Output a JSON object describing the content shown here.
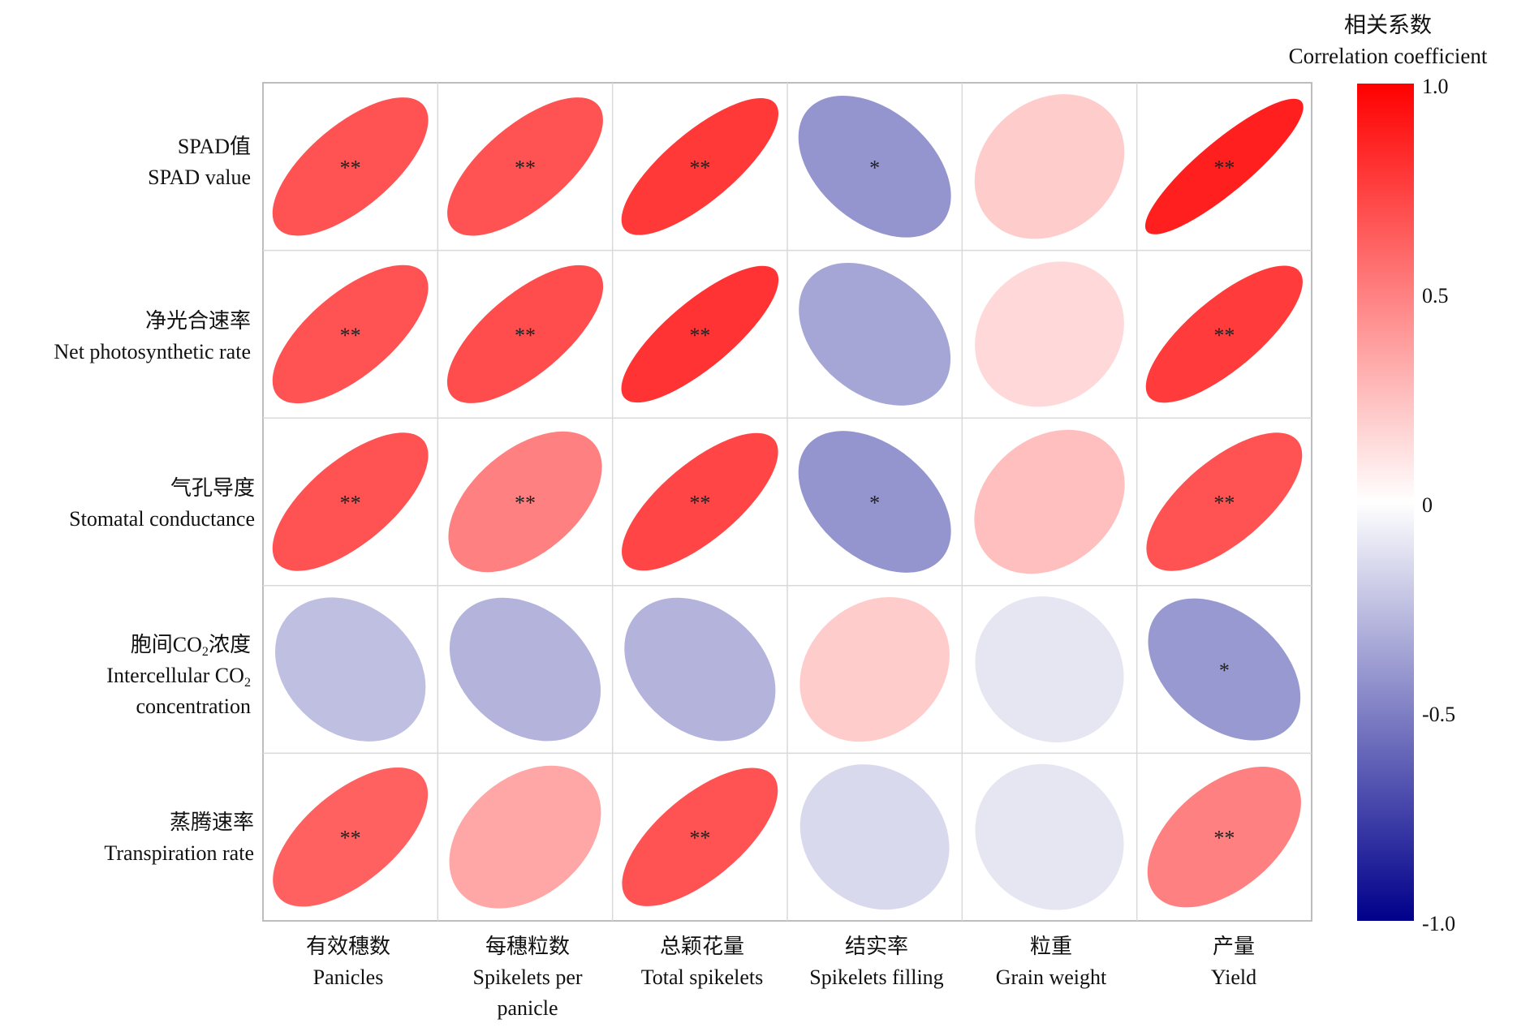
{
  "chart_data": {
    "type": "heatmap",
    "style": "ellipse correlation matrix",
    "rows": [
      {
        "zh": "SPAD值",
        "en": "SPAD value"
      },
      {
        "zh": "净光合速率",
        "en": "Net photosynthetic rate"
      },
      {
        "zh": "气孔导度",
        "en": "Stomatal conductance"
      },
      {
        "zh_pre": "胞间CO",
        "zh_sub": "2",
        "zh_post": "浓度",
        "en_pre": "Intercellular CO",
        "en_sub": "2",
        "en_line2": "concentration"
      },
      {
        "zh": "蒸腾速率",
        "en": "Transpiration rate"
      }
    ],
    "columns": [
      {
        "zh": "有效穗数",
        "en": "Panicles"
      },
      {
        "zh": "每穗粒数",
        "en": "Spikelets per",
        "en2": "panicle"
      },
      {
        "zh": "总颖花量",
        "en": "Total spikelets"
      },
      {
        "zh": "结实率",
        "en": "Spikelets filling"
      },
      {
        "zh": "粒重",
        "en": "Grain weight"
      },
      {
        "zh": "产量",
        "en": "Yield"
      }
    ],
    "values": [
      [
        0.68,
        0.68,
        0.78,
        -0.42,
        0.2,
        0.88
      ],
      [
        0.68,
        0.7,
        0.8,
        -0.35,
        0.15,
        0.77
      ],
      [
        0.68,
        0.5,
        0.73,
        -0.42,
        0.25,
        0.68
      ],
      [
        -0.25,
        -0.3,
        -0.3,
        0.2,
        -0.1,
        -0.4
      ],
      [
        0.62,
        0.35,
        0.68,
        -0.15,
        -0.1,
        0.5
      ]
    ],
    "significance": [
      [
        "**",
        "**",
        "**",
        "*",
        "",
        "**"
      ],
      [
        "**",
        "**",
        "**",
        "",
        "",
        "**"
      ],
      [
        "**",
        "**",
        "**",
        "*",
        "",
        "**"
      ],
      [
        "",
        "",
        "",
        "",
        "",
        "*"
      ],
      [
        "**",
        "",
        "**",
        "",
        "",
        "**"
      ]
    ],
    "legend": {
      "title_zh": "相关系数",
      "title_en": "Correlation coefficient",
      "ticks": [
        "1.0",
        "0.5",
        "0",
        "-0.5",
        "-1.0"
      ],
      "tick_values": [
        1.0,
        0.5,
        0,
        -0.5,
        -1.0
      ],
      "range": [
        -1.0,
        1.0
      ],
      "colors": {
        "high": "#ff0000",
        "mid": "#ffffff",
        "low": "#00008b"
      }
    },
    "grid": true
  }
}
